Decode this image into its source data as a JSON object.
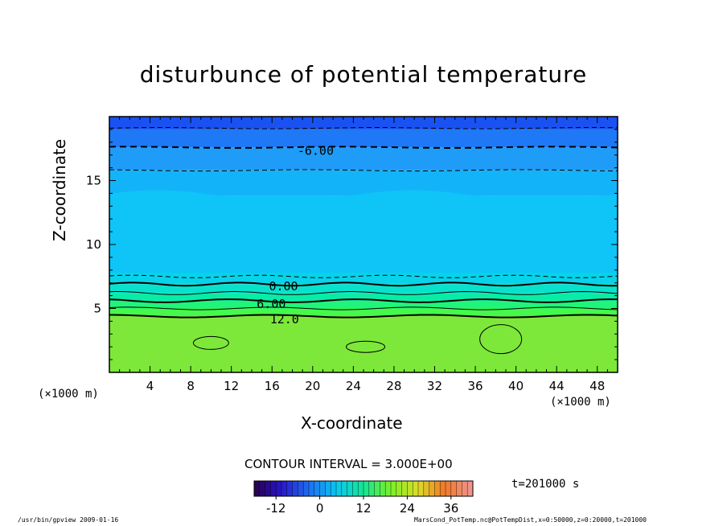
{
  "chart_data": {
    "type": "heatmap",
    "title": "disturbunce of potential temperature",
    "xlabel": "X-coordinate",
    "ylabel": "Z-coordinate",
    "x_unit": "(×1000 m)",
    "z_unit": "(×1000 m)",
    "xlim": [
      0,
      50
    ],
    "ylim": [
      0,
      20
    ],
    "x_ticks": [
      4,
      8,
      12,
      16,
      20,
      24,
      28,
      32,
      36,
      40,
      44,
      48
    ],
    "y_ticks": [
      5,
      10,
      15
    ],
    "contour_interval_label": "CONTOUR INTERVAL = 3.000E+00",
    "contour_labels": [
      {
        "text": "-6.00",
        "x": 18.5,
        "z": 17.4
      },
      {
        "text": "0.00",
        "x": 15.7,
        "z": 6.8
      },
      {
        "text": "6.00",
        "x": 14.5,
        "z": 5.4
      },
      {
        "text": "12.0",
        "x": 15.8,
        "z": 4.2
      }
    ],
    "color_scale": {
      "min": -18,
      "max": 42,
      "ticks": [
        -12,
        0,
        12,
        24,
        36
      ]
    },
    "layers": [
      {
        "z_from": 19.0,
        "z_to": 20.0,
        "value": -12,
        "color": "#1a52f2"
      },
      {
        "z_from": 17.6,
        "z_to": 19.0,
        "value": -9,
        "color": "#1f78f5"
      },
      {
        "z_from": 15.8,
        "z_to": 17.6,
        "value": -6,
        "color": "#1f9cf7"
      },
      {
        "z_from": 13.8,
        "z_to": 15.8,
        "value": -4,
        "color": "#13b3f9"
      },
      {
        "z_from": 7.8,
        "z_to": 13.8,
        "value": -3,
        "color": "#0fc4f7"
      },
      {
        "z_from": 6.9,
        "z_to": 7.8,
        "value": -1,
        "color": "#07d3ea"
      },
      {
        "z_from": 6.2,
        "z_to": 6.9,
        "value": 2,
        "color": "#08e2cc"
      },
      {
        "z_from": 5.6,
        "z_to": 6.2,
        "value": 5,
        "color": "#08eca8"
      },
      {
        "z_from": 5.0,
        "z_to": 5.6,
        "value": 8,
        "color": "#20f57b"
      },
      {
        "z_from": 4.4,
        "z_to": 5.0,
        "value": 10,
        "color": "#45f84c"
      },
      {
        "z_from": 0.0,
        "z_to": 4.4,
        "value": 14,
        "color": "#7de83a"
      }
    ],
    "time_label": "t=201000 s",
    "footer_left": "/usr/bin/gpview   2009-01-16",
    "footer_right": "MarsCond_PotTemp.nc@PotTempDist,x=0:50000,z=0:20000,t=201000"
  },
  "colors": {
    "text": "#000000",
    "frame": "#000000"
  }
}
